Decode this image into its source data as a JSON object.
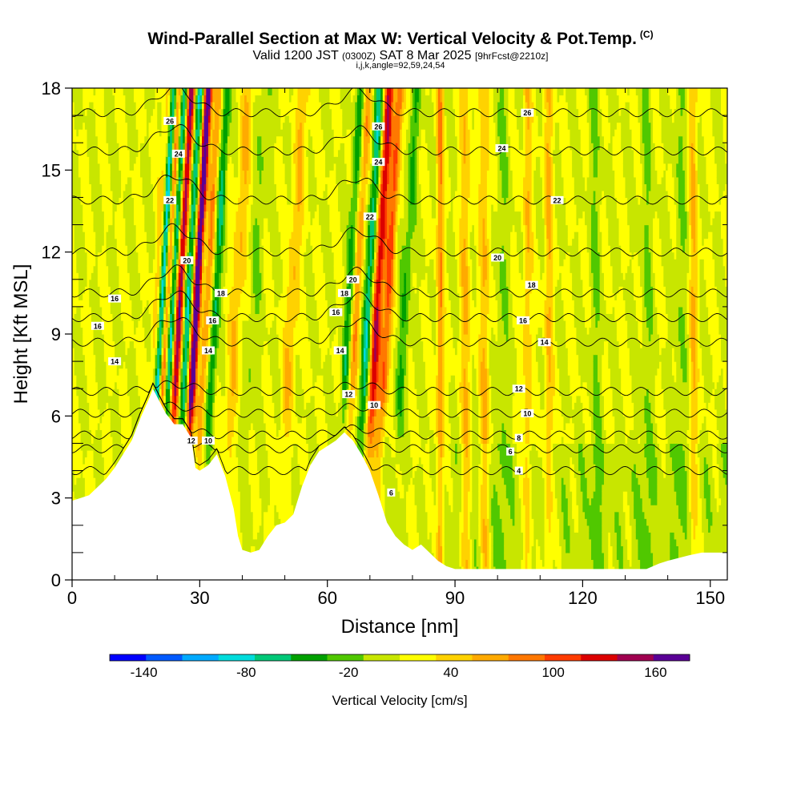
{
  "title": "Wind-Parallel Section at Max W: Vertical Velocity & Pot.Temp.",
  "title_mark": "(C)",
  "subtitle_valid": "Valid 1200 JST",
  "subtitle_utc": "(0300Z)",
  "subtitle_date": "SAT 8 Mar 2025",
  "subtitle_fcst": "[9hrFcst@2210z]",
  "params": "i,j,k,angle=92,59,24,54",
  "chart_data": {
    "type": "heatmap",
    "title": "Wind-Parallel Section at Max W: Vertical Velocity & Pot.Temp.",
    "xlabel": "Distance [nm]",
    "ylabel": "Height [Kft MSL]",
    "xlim": [
      0,
      154
    ],
    "ylim": [
      0,
      18
    ],
    "xticks": [
      0,
      30,
      60,
      90,
      120,
      150
    ],
    "yticks": [
      0,
      3,
      6,
      9,
      12,
      15,
      18
    ],
    "colorbar": {
      "label": "Vertical Velocity [cm/s]",
      "min": -160,
      "max": 180,
      "step": 20,
      "tick_labels": [
        -140,
        -80,
        -20,
        40,
        100,
        160
      ],
      "colors": [
        "#0000ff",
        "#005aff",
        "#00aaff",
        "#00dcdc",
        "#00c878",
        "#00a000",
        "#50c800",
        "#c8e600",
        "#ffff00",
        "#ffd200",
        "#ffaa00",
        "#ff7800",
        "#ff3c00",
        "#dc0000",
        "#a00050",
        "#5a0096"
      ]
    },
    "terrain": [
      [
        0,
        2.9
      ],
      [
        2,
        3.0
      ],
      [
        4,
        3.1
      ],
      [
        6,
        3.4
      ],
      [
        8,
        3.7
      ],
      [
        10,
        4.1
      ],
      [
        12,
        4.6
      ],
      [
        14,
        5.1
      ],
      [
        16,
        5.9
      ],
      [
        18,
        6.6
      ],
      [
        19,
        7.0
      ],
      [
        20,
        6.7
      ],
      [
        22,
        6.1
      ],
      [
        24,
        5.7
      ],
      [
        26,
        5.7
      ],
      [
        28,
        5.2
      ],
      [
        29,
        4.1
      ],
      [
        30,
        4.0
      ],
      [
        32,
        4.2
      ],
      [
        34,
        4.6
      ],
      [
        36,
        3.8
      ],
      [
        38,
        2.6
      ],
      [
        39,
        1.6
      ],
      [
        40,
        1.1
      ],
      [
        42,
        1.0
      ],
      [
        44,
        1.1
      ],
      [
        46,
        1.6
      ],
      [
        48,
        2.0
      ],
      [
        50,
        2.1
      ],
      [
        52,
        2.4
      ],
      [
        54,
        3.4
      ],
      [
        56,
        4.2
      ],
      [
        58,
        4.7
      ],
      [
        60,
        4.9
      ],
      [
        62,
        5.1
      ],
      [
        64,
        5.4
      ],
      [
        66,
        5.1
      ],
      [
        68,
        4.6
      ],
      [
        70,
        4.0
      ],
      [
        72,
        3.1
      ],
      [
        74,
        2.1
      ],
      [
        76,
        1.6
      ],
      [
        78,
        1.3
      ],
      [
        80,
        1.1
      ],
      [
        82,
        1.3
      ],
      [
        84,
        1.0
      ],
      [
        86,
        0.7
      ],
      [
        88,
        0.5
      ],
      [
        90,
        0.4
      ],
      [
        100,
        0.4
      ],
      [
        110,
        0.4
      ],
      [
        120,
        0.4
      ],
      [
        130,
        0.4
      ],
      [
        135,
        0.4
      ],
      [
        138,
        0.6
      ],
      [
        140,
        0.7
      ],
      [
        145,
        0.9
      ],
      [
        148,
        1.0
      ],
      [
        154,
        1.0
      ]
    ],
    "updraft_columns": [
      {
        "x": 19.5,
        "w": 1.2,
        "peak": 40
      },
      {
        "x": 21.5,
        "w": 1.0,
        "peak": 100
      },
      {
        "x": 24.5,
        "w": 1.1,
        "peak": 140
      },
      {
        "x": 28.5,
        "w": 0.9,
        "peak": 180
      },
      {
        "x": 31.0,
        "w": 1.0,
        "peak": 60
      },
      {
        "x": 38.0,
        "w": 1.5,
        "peak": 40
      },
      {
        "x": 51.0,
        "w": 1.5,
        "peak": 40
      },
      {
        "x": 66.0,
        "w": 1.2,
        "peak": 60
      },
      {
        "x": 71.0,
        "w": 1.3,
        "peak": 120
      },
      {
        "x": 73.5,
        "w": 1.1,
        "peak": 80
      },
      {
        "x": 86.5,
        "w": 0.8,
        "peak": 60
      },
      {
        "x": 92.5,
        "w": 1.2,
        "peak": 40
      },
      {
        "x": 97.0,
        "w": 1.2,
        "peak": 40
      },
      {
        "x": 107.0,
        "w": 1.0,
        "peak": 40
      },
      {
        "x": 112.0,
        "w": 1.0,
        "peak": 40
      },
      {
        "x": 146.0,
        "w": 1.0,
        "peak": 40
      }
    ],
    "downdraft_columns": [
      {
        "x": 20.5,
        "w": 0.9,
        "peak": -140
      },
      {
        "x": 23.0,
        "w": 1.0,
        "peak": -100
      },
      {
        "x": 26.5,
        "w": 1.0,
        "peak": -80
      },
      {
        "x": 33.0,
        "w": 1.0,
        "peak": -60
      },
      {
        "x": 42.0,
        "w": 1.5,
        "peak": -20
      },
      {
        "x": 64.5,
        "w": 1.1,
        "peak": -60
      },
      {
        "x": 69.0,
        "w": 1.2,
        "peak": -80
      },
      {
        "x": 77.5,
        "w": 1.2,
        "peak": -40
      },
      {
        "x": 101.0,
        "w": 1.5,
        "peak": -20
      },
      {
        "x": 123.0,
        "w": 1.5,
        "peak": -20
      },
      {
        "x": 135.0,
        "w": 1.5,
        "peak": -20
      },
      {
        "x": 143.0,
        "w": 1.5,
        "peak": -20
      }
    ],
    "theta_contours": [
      {
        "label": "4",
        "h": 4.0
      },
      {
        "label": "6",
        "h": 4.8
      },
      {
        "label": "8",
        "h": 5.3
      },
      {
        "label": "10",
        "h": 6.1
      },
      {
        "label": "12",
        "h": 6.9
      },
      {
        "label": "14",
        "h": 8.7
      },
      {
        "label": "16",
        "h": 9.6
      },
      {
        "label": "18",
        "h": 10.5
      },
      {
        "label": "20",
        "h": 12.0
      },
      {
        "label": "22",
        "h": 13.9
      },
      {
        "label": "24",
        "h": 15.7
      },
      {
        "label": "26",
        "h": 17.1
      }
    ],
    "contour_labels": [
      {
        "text": "16",
        "x": 10,
        "y": 10.3
      },
      {
        "text": "16",
        "x": 6,
        "y": 9.3
      },
      {
        "text": "14",
        "x": 10,
        "y": 8.0
      },
      {
        "text": "26",
        "x": 23,
        "y": 16.8
      },
      {
        "text": "24",
        "x": 25,
        "y": 15.6
      },
      {
        "text": "22",
        "x": 23,
        "y": 13.9
      },
      {
        "text": "20",
        "x": 27,
        "y": 11.7
      },
      {
        "text": "18",
        "x": 35,
        "y": 10.5
      },
      {
        "text": "16",
        "x": 33,
        "y": 9.5
      },
      {
        "text": "14",
        "x": 32,
        "y": 8.4
      },
      {
        "text": "12",
        "x": 28,
        "y": 5.1
      },
      {
        "text": "10",
        "x": 32,
        "y": 5.1
      },
      {
        "text": "26",
        "x": 72,
        "y": 16.6
      },
      {
        "text": "24",
        "x": 72,
        "y": 15.3
      },
      {
        "text": "22",
        "x": 70,
        "y": 13.3
      },
      {
        "text": "20",
        "x": 66,
        "y": 11.0
      },
      {
        "text": "18",
        "x": 64,
        "y": 10.5
      },
      {
        "text": "16",
        "x": 62,
        "y": 9.8
      },
      {
        "text": "14",
        "x": 63,
        "y": 8.4
      },
      {
        "text": "12",
        "x": 65,
        "y": 6.8
      },
      {
        "text": "10",
        "x": 71,
        "y": 6.4
      },
      {
        "text": "6",
        "x": 75,
        "y": 3.2
      },
      {
        "text": "26",
        "x": 107,
        "y": 17.1
      },
      {
        "text": "24",
        "x": 101,
        "y": 15.8
      },
      {
        "text": "22",
        "x": 114,
        "y": 13.9
      },
      {
        "text": "20",
        "x": 100,
        "y": 11.8
      },
      {
        "text": "18",
        "x": 108,
        "y": 10.8
      },
      {
        "text": "16",
        "x": 106,
        "y": 9.5
      },
      {
        "text": "14",
        "x": 111,
        "y": 8.7
      },
      {
        "text": "12",
        "x": 105,
        "y": 7.0
      },
      {
        "text": "10",
        "x": 107,
        "y": 6.1
      },
      {
        "text": "8",
        "x": 105,
        "y": 5.2
      },
      {
        "text": "6",
        "x": 103,
        "y": 4.7
      },
      {
        "text": "4",
        "x": 105,
        "y": 4.0
      }
    ]
  }
}
